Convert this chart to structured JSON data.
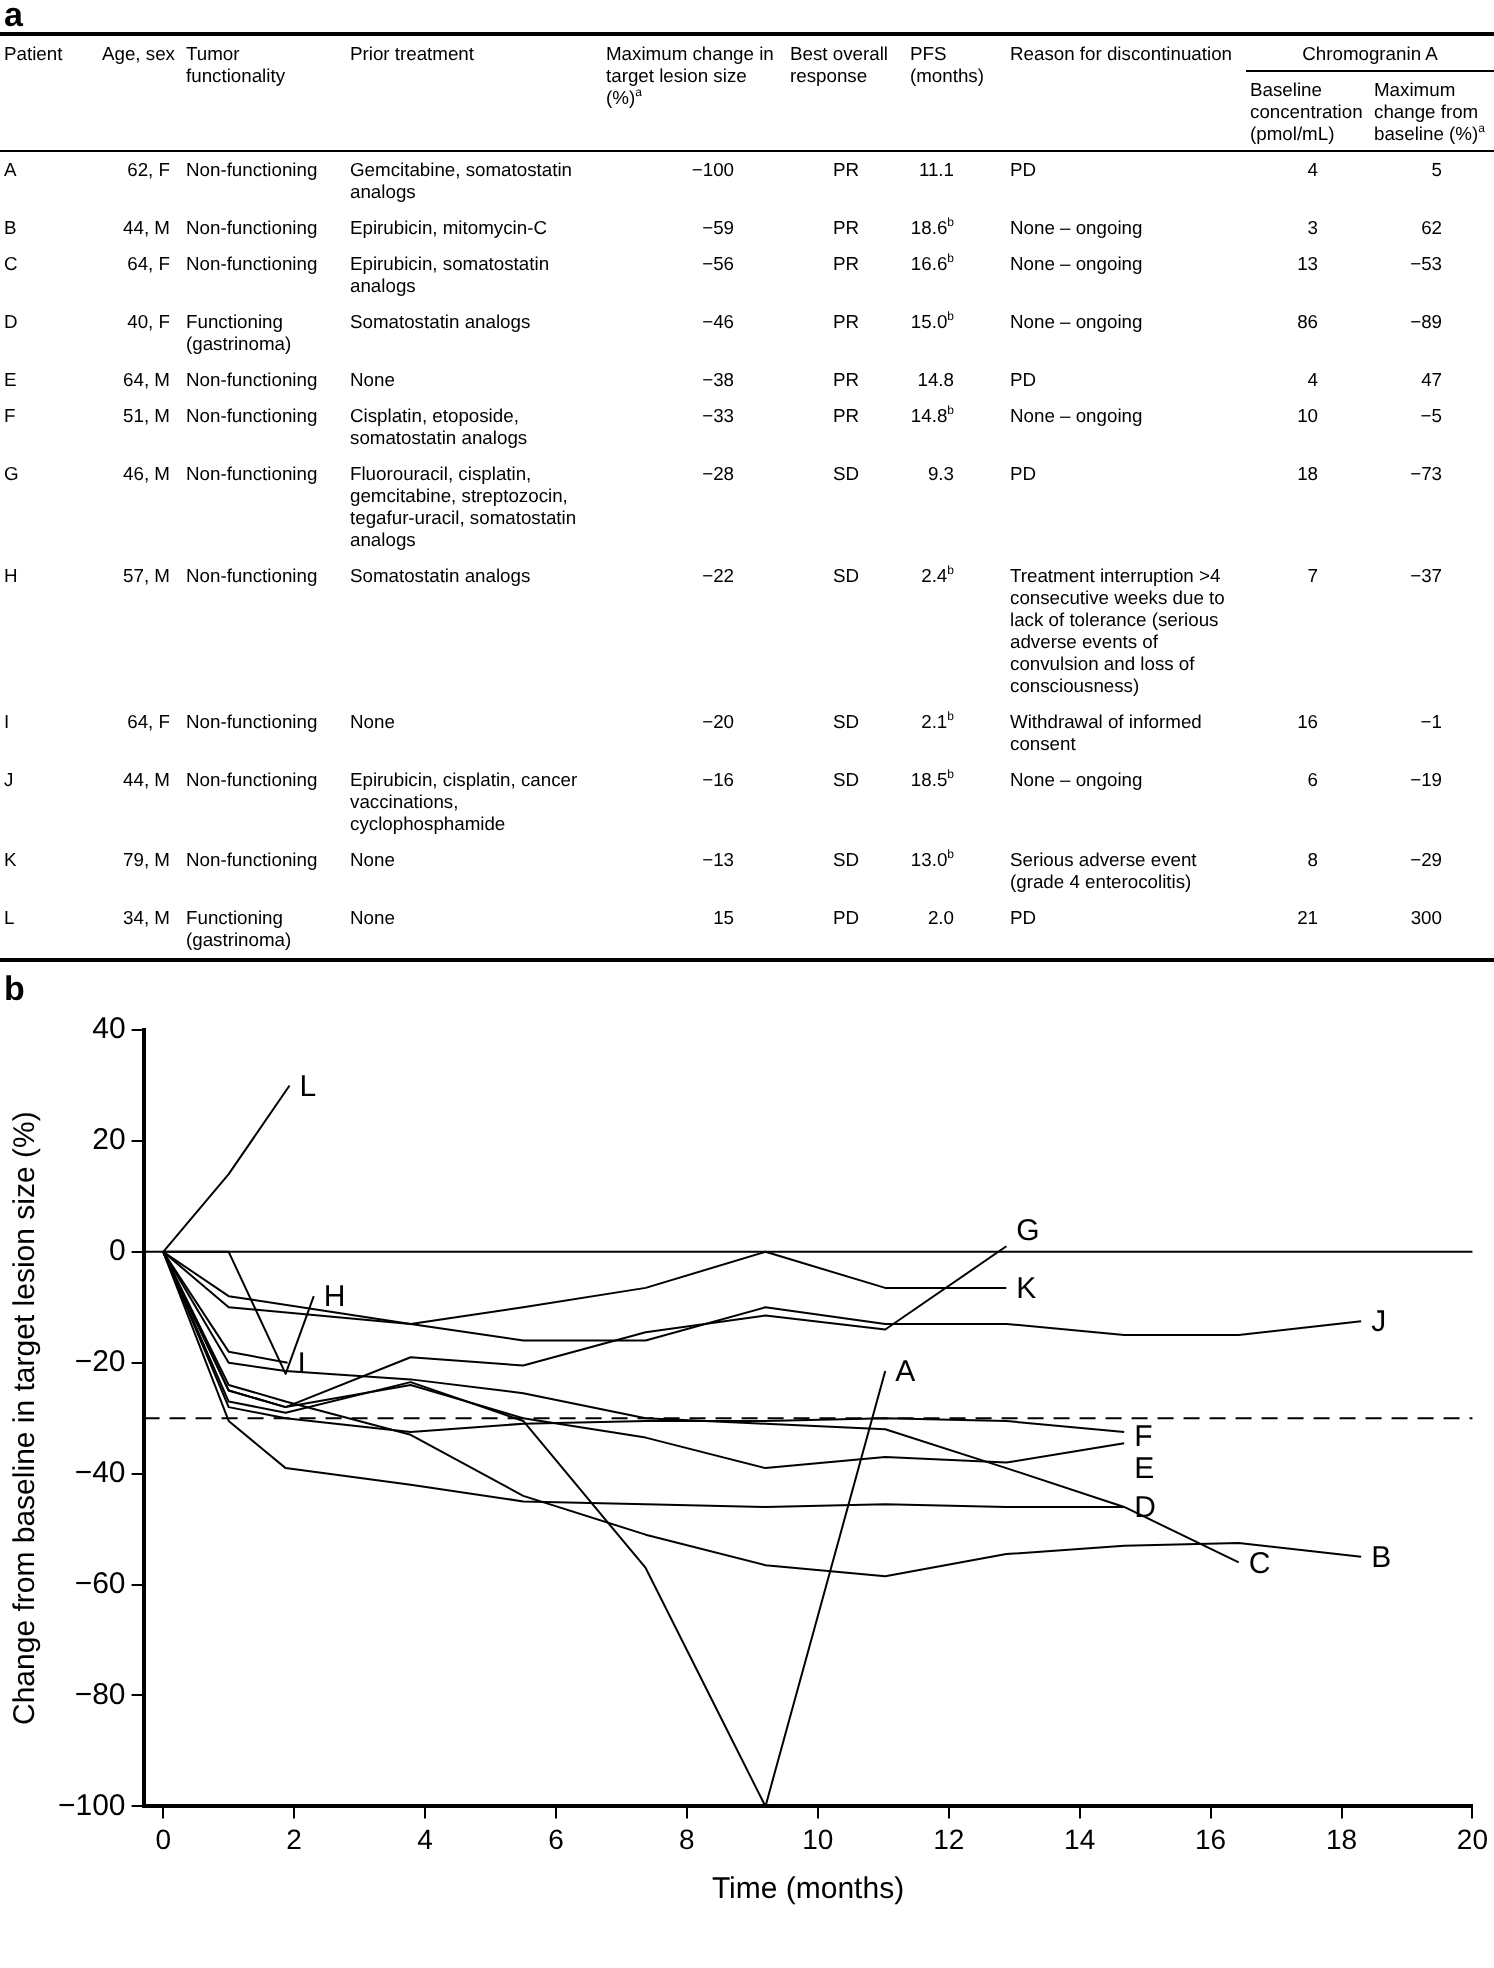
{
  "chart_data": [
    {
      "type": "other",
      "title": "a",
      "annotations": [
        "Chromogranin A"
      ],
      "categories": [
        "Patient",
        "Age, sex",
        "Tumor functionality",
        "Prior treatment",
        "Maximum change in target lesion size (%)$^{a}$",
        "Best overall response",
        "PFS (months)",
        "Reason for discontinuation",
        "Baseline concentration (pmol/mL)",
        "Maximum change from baseline (%)$^{a}$"
      ],
      "cell_labels": [
        [
          "A",
          "62, F",
          "Non-functioning",
          "Gemcitabine, somatostatin analogs",
          "−100",
          "PR",
          "11.1",
          "PD",
          "4",
          "5"
        ],
        [
          "B",
          "44, M",
          "Non-functioning",
          "Epirubicin, mitomycin-C",
          "−59",
          "PR",
          "18.6$^{b}$",
          "None – ongoing",
          "3",
          "62"
        ],
        [
          "C",
          "64, F",
          "Non-functioning",
          "Epirubicin, somatostatin analogs",
          "−56",
          "PR",
          "16.6$^{b}$",
          "None – ongoing",
          "13",
          "−53"
        ],
        [
          "D",
          "40, F",
          "Functioning (gastrinoma)",
          "Somatostatin analogs",
          "−46",
          "PR",
          "15.0$^{b}$",
          "None – ongoing",
          "86",
          "−89"
        ],
        [
          "E",
          "64, M",
          "Non-functioning",
          "None",
          "−38",
          "PR",
          "14.8",
          "PD",
          "4",
          "47"
        ],
        [
          "F",
          "51, M",
          "Non-functioning",
          "Cisplatin, etoposide, somatostatin analogs",
          "−33",
          "PR",
          "14.8$^{b}$",
          "None – ongoing",
          "10",
          "−5"
        ],
        [
          "G",
          "46, M",
          "Non-functioning",
          "Fluorouracil, cisplatin, gemcitabine, streptozocin, tegafur-uracil, somatostatin analogs",
          "−28",
          "SD",
          "9.3",
          "PD",
          "18",
          "−73"
        ],
        [
          "H",
          "57, M",
          "Non-functioning",
          "Somatostatin analogs",
          "−22",
          "SD",
          "2.4$^{b}$",
          "Treatment interruption >4 consecutive weeks due to lack of tolerance (serious adverse events of convulsion and loss of consciousness)",
          "7",
          "−37"
        ],
        [
          "I",
          "64, F",
          "Non-functioning",
          "None",
          "−20",
          "SD",
          "2.1$^{b}$",
          "Withdrawal of informed consent",
          "16",
          "−1"
        ],
        [
          "J",
          "44, M",
          "Non-functioning",
          "Epirubicin, cisplatin, cancer vaccinations, cyclophosphamide",
          "−16",
          "SD",
          "18.5$^{b}$",
          "None – ongoing",
          "6",
          "−19"
        ],
        [
          "K",
          "79, M",
          "Non-functioning",
          "None",
          "−13",
          "SD",
          "13.0$^{b}$",
          "Serious adverse event (grade 4 enterocolitis)",
          "8",
          "−29"
        ],
        [
          "L",
          "34, M",
          "Functioning (gastrinoma)",
          "None",
          "15",
          "PD",
          "2.0",
          "PD",
          "21",
          "300"
        ]
      ]
    },
    {
      "type": "line",
      "title": "b",
      "xlabel": "Time (months)",
      "ylabel": "Change from baseline in target lesion size (%)",
      "xlim": [
        -0.3,
        20
      ],
      "xticks": [
        0,
        2,
        4,
        6,
        8,
        10,
        12,
        14,
        16,
        18,
        20
      ],
      "ylim": [
        -100,
        40
      ],
      "yticks": [
        -100,
        -80,
        -60,
        -40,
        -20,
        0,
        20,
        40
      ],
      "grid": false,
      "legend": false,
      "marker": "none",
      "line_style": "solid",
      "ref_lines": [
        {
          "axis": "y",
          "value": 0,
          "line_style": "solid"
        },
        {
          "axis": "y",
          "value": -30,
          "line_style": "dashed"
        }
      ],
      "series": [
        {
          "name": "A",
          "color": "#000000",
          "x": [
            0,
            1,
            1.87,
            3.78,
            5.5,
            7.37,
            9.2,
            11.03
          ],
          "values": [
            0,
            -27,
            -29,
            -23.5,
            -30.5,
            -57,
            -100,
            -21.5
          ]
        },
        {
          "name": "B",
          "color": "#000000",
          "x": [
            0,
            1,
            1.87,
            3.78,
            5.5,
            7.37,
            9.2,
            11.03,
            12.88,
            14.68,
            16.43,
            18.3
          ],
          "values": [
            0,
            -24,
            -27,
            -33,
            -44,
            -51,
            -56.5,
            -58.5,
            -54.5,
            -53,
            -52.5,
            -55
          ]
        },
        {
          "name": "C",
          "color": "#000000",
          "x": [
            0,
            1,
            1.87,
            3.78,
            5.5,
            7.37,
            9.2,
            11.03,
            12.88,
            14.68,
            16.43
          ],
          "values": [
            0,
            -20,
            -21.5,
            -23,
            -25.5,
            -30,
            -31,
            -32,
            -39,
            -46,
            -56
          ]
        },
        {
          "name": "D",
          "color": "#000000",
          "x": [
            0,
            1,
            1.87,
            3.78,
            5.5,
            7.37,
            9.2,
            11.03,
            12.88,
            14.68
          ],
          "values": [
            0,
            -30.5,
            -39,
            -42,
            -45,
            -45.5,
            -46,
            -45.5,
            -46,
            -46
          ]
        },
        {
          "name": "E",
          "color": "#000000",
          "x": [
            0,
            1,
            1.87,
            3.78,
            5.5,
            7.37,
            9.2,
            11.03,
            12.88,
            14.68
          ],
          "values": [
            0,
            -25,
            -28,
            -24,
            -30,
            -33.5,
            -39,
            -37,
            -38,
            -34.5
          ]
        },
        {
          "name": "F",
          "color": "#000000",
          "x": [
            0,
            1,
            1.87,
            3.78,
            5.5,
            7.37,
            9.2,
            11.03,
            12.88,
            14.68
          ],
          "values": [
            0,
            -28,
            -30,
            -32.5,
            -31,
            -30.5,
            -30.5,
            -30,
            -30.5,
            -32.5
          ]
        },
        {
          "name": "G",
          "color": "#000000",
          "x": [
            0,
            1,
            1.87,
            3.78,
            5.5,
            7.37,
            9.2,
            11.03,
            12.88
          ],
          "values": [
            0,
            -25,
            -28,
            -19,
            -20.5,
            -14.5,
            -11.5,
            -14,
            1
          ]
        },
        {
          "name": "H",
          "color": "#000000",
          "x": [
            0,
            1,
            1.87,
            2.3
          ],
          "values": [
            0,
            0,
            -22,
            -8
          ]
        },
        {
          "name": "I",
          "color": "#000000",
          "x": [
            0,
            1,
            1.9
          ],
          "values": [
            0,
            -18,
            -20
          ]
        },
        {
          "name": "J",
          "color": "#000000",
          "x": [
            0,
            1,
            3.78,
            5.5,
            7.37,
            9.2,
            11.03,
            12.88,
            14.68,
            16.43,
            18.3
          ],
          "values": [
            0,
            -10,
            -13,
            -16,
            -16,
            -10,
            -13,
            -13,
            -15,
            -15,
            -12.5
          ]
        },
        {
          "name": "K",
          "color": "#000000",
          "x": [
            0,
            1,
            3.78,
            5.5,
            7.37,
            9.2,
            11.03,
            12.88
          ],
          "values": [
            0,
            -8,
            -13,
            -10,
            -6.5,
            0,
            -6.5,
            -6.5
          ]
        },
        {
          "name": "L",
          "color": "#000000",
          "x": [
            0,
            1,
            1.93
          ],
          "values": [
            0,
            14,
            30
          ]
        }
      ]
    }
  ]
}
